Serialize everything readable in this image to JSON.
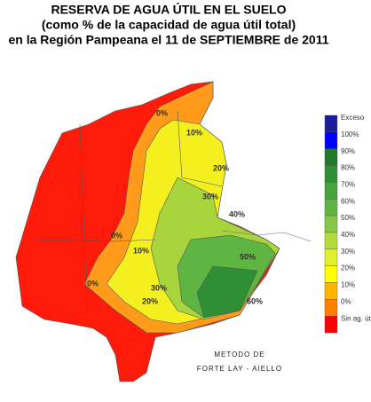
{
  "title": [
    "RESERVA DE AGUA ÚTIL EN EL SUELO",
    "(como % de la capacidad de agua útil total)",
    "en la Región Pampeana el 11 de SEPTIEMBRE de 2011"
  ],
  "legend": [
    {
      "label": "Exceso",
      "color": "#1c1c9c"
    },
    {
      "label": "100%",
      "color": "#0000ff"
    },
    {
      "label": "90%",
      "color": "#1f7a2a"
    },
    {
      "label": "80%",
      "color": "#2f8f35"
    },
    {
      "label": "70%",
      "color": "#45a33c"
    },
    {
      "label": "60%",
      "color": "#5fb542"
    },
    {
      "label": "50%",
      "color": "#86c843"
    },
    {
      "label": "40%",
      "color": "#b3dc3c"
    },
    {
      "label": "30%",
      "color": "#e2f02a"
    },
    {
      "label": "20%",
      "color": "#ffff00"
    },
    {
      "label": "10%",
      "color": "#ffb400"
    },
    {
      "label": "0%",
      "color": "#ff8000"
    },
    {
      "label": "Sin ag. útil",
      "color": "#ff0000"
    }
  ],
  "map_labels": [
    "0%",
    "10%",
    "20%",
    "30%",
    "40%",
    "50%",
    "60%",
    "10%",
    "0%",
    "20%",
    "30%",
    "0%"
  ],
  "footer": [
    "METODO DE",
    "FORTE LAY - AIELLO"
  ]
}
